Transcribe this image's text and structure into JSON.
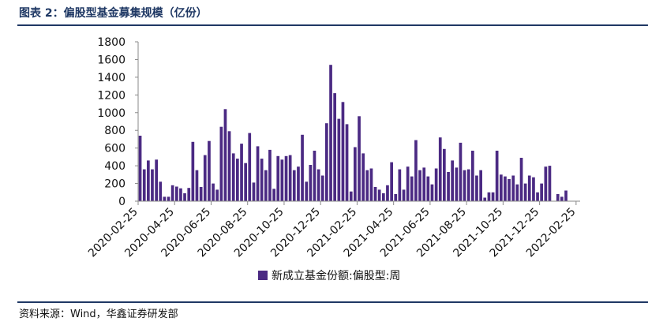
{
  "header": {
    "title": "图表 2：偏股型基金募集规模（亿份）"
  },
  "footer": {
    "source": "资料来源：Wind，华鑫证券研发部"
  },
  "colors": {
    "bar": "#4b2a83",
    "title": "#1f3864",
    "axis": "#8a8a8a"
  },
  "chart_data": {
    "type": "bar",
    "title": "图表 2：偏股型基金募集规模（亿份）",
    "xlabel": "",
    "ylabel": "",
    "ylim": [
      0,
      1800
    ],
    "yticks": [
      0,
      200,
      400,
      600,
      800,
      1000,
      1200,
      1400,
      1600,
      1800
    ],
    "xtick_labels": [
      "2020-02-25",
      "2020-04-25",
      "2020-06-25",
      "2020-08-25",
      "2020-10-25",
      "2020-12-25",
      "2021-02-25",
      "2021-04-25",
      "2021-06-25",
      "2021-08-25",
      "2021-10-25",
      "2021-12-25",
      "2022-02-25"
    ],
    "grid": false,
    "legend_position": "bottom-right",
    "categories": [
      "2020-02-25",
      "2020-03-03",
      "2020-03-10",
      "2020-03-17",
      "2020-03-24",
      "2020-03-31",
      "2020-04-07",
      "2020-04-14",
      "2020-04-21",
      "2020-04-25",
      "2020-05-02",
      "2020-05-09",
      "2020-05-16",
      "2020-05-23",
      "2020-05-30",
      "2020-06-06",
      "2020-06-13",
      "2020-06-20",
      "2020-06-25",
      "2020-07-02",
      "2020-07-09",
      "2020-07-16",
      "2020-07-23",
      "2020-07-30",
      "2020-08-06",
      "2020-08-13",
      "2020-08-20",
      "2020-08-25",
      "2020-09-01",
      "2020-09-08",
      "2020-09-15",
      "2020-09-22",
      "2020-09-29",
      "2020-10-06",
      "2020-10-13",
      "2020-10-20",
      "2020-10-25",
      "2020-11-01",
      "2020-11-08",
      "2020-11-15",
      "2020-11-22",
      "2020-11-29",
      "2020-12-06",
      "2020-12-13",
      "2020-12-20",
      "2020-12-25",
      "2021-01-01",
      "2021-01-08",
      "2021-01-15",
      "2021-01-22",
      "2021-01-29",
      "2021-02-05",
      "2021-02-12",
      "2021-02-19",
      "2021-02-25",
      "2021-03-04",
      "2021-03-11",
      "2021-03-18",
      "2021-03-25",
      "2021-04-01",
      "2021-04-08",
      "2021-04-15",
      "2021-04-22",
      "2021-04-25",
      "2021-05-02",
      "2021-05-09",
      "2021-05-16",
      "2021-05-23",
      "2021-05-30",
      "2021-06-06",
      "2021-06-13",
      "2021-06-20",
      "2021-06-25",
      "2021-07-02",
      "2021-07-09",
      "2021-07-16",
      "2021-07-23",
      "2021-07-30",
      "2021-08-06",
      "2021-08-13",
      "2021-08-20",
      "2021-08-25",
      "2021-09-01",
      "2021-09-08",
      "2021-09-15",
      "2021-09-22",
      "2021-09-29",
      "2021-10-06",
      "2021-10-13",
      "2021-10-20",
      "2021-10-25",
      "2021-11-01",
      "2021-11-08",
      "2021-11-15",
      "2021-11-22",
      "2021-11-29",
      "2021-12-06",
      "2021-12-13",
      "2021-12-20",
      "2021-12-25",
      "2022-01-01",
      "2022-01-08",
      "2022-01-15",
      "2022-01-22",
      "2022-01-29",
      "2022-02-05",
      "2022-02-12",
      "2022-02-19",
      "2022-02-25"
    ],
    "series": [
      {
        "name": "新成立基金份额:偏股型:周",
        "values": [
          740,
          360,
          460,
          360,
          470,
          220,
          50,
          50,
          180,
          165,
          145,
          90,
          150,
          670,
          350,
          160,
          520,
          680,
          200,
          130,
          840,
          1040,
          790,
          540,
          480,
          650,
          430,
          770,
          210,
          620,
          480,
          350,
          580,
          140,
          510,
          470,
          510,
          520,
          350,
          390,
          750,
          220,
          410,
          570,
          360,
          290,
          880,
          1540,
          1220,
          930,
          1120,
          870,
          110,
          610,
          960,
          540,
          350,
          370,
          160,
          130,
          90,
          180,
          440,
          80,
          360,
          130,
          390,
          280,
          690,
          350,
          380,
          280,
          190,
          370,
          720,
          590,
          330,
          460,
          380,
          660,
          350,
          360,
          570,
          290,
          350,
          40,
          100,
          100,
          570,
          300,
          280,
          250,
          290,
          190,
          490,
          200,
          290,
          270,
          100,
          200,
          390,
          400,
          0,
          80,
          50,
          120,
          0,
          0,
          0
        ]
      }
    ]
  }
}
